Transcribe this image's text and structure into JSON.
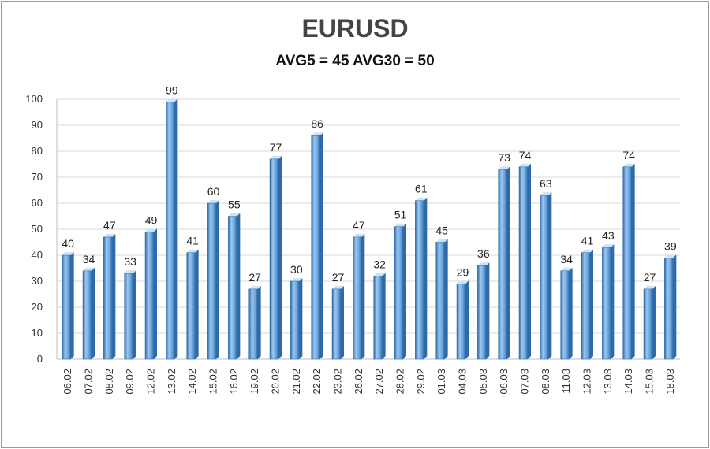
{
  "chart_data": {
    "type": "bar",
    "title": "EURUSD",
    "subtitle": "AVG5 = 45 AVG30 = 50",
    "xlabel": "",
    "ylabel": "",
    "ylim": [
      0,
      100
    ],
    "yticks": [
      0,
      10,
      20,
      30,
      40,
      50,
      60,
      70,
      80,
      90,
      100
    ],
    "grid": true,
    "categories": [
      "06.02",
      "07.02",
      "08.02",
      "09.02",
      "12.02",
      "13.02",
      "14.02",
      "15.02",
      "16.02",
      "19.02",
      "20.02",
      "21.02",
      "22.02",
      "23.02",
      "26.02",
      "27.02",
      "28.02",
      "29.02",
      "01.03",
      "04.03",
      "05.03",
      "06.03",
      "07.03",
      "08.03",
      "11.03",
      "12.03",
      "13.03",
      "14.03",
      "15.03",
      "18.03"
    ],
    "values": [
      40,
      34,
      47,
      33,
      49,
      99,
      41,
      60,
      55,
      27,
      77,
      30,
      86,
      27,
      47,
      32,
      51,
      61,
      45,
      29,
      36,
      73,
      74,
      63,
      34,
      41,
      43,
      74,
      27,
      39
    ],
    "colors": {
      "bar_light": "#9cc6ee",
      "bar_mid": "#5b9bd5",
      "bar_dark": "#2e6aa8",
      "bar_top": "#cfe3f7",
      "grid": "#d9d9d9",
      "axis": "#bfbfbf"
    }
  }
}
